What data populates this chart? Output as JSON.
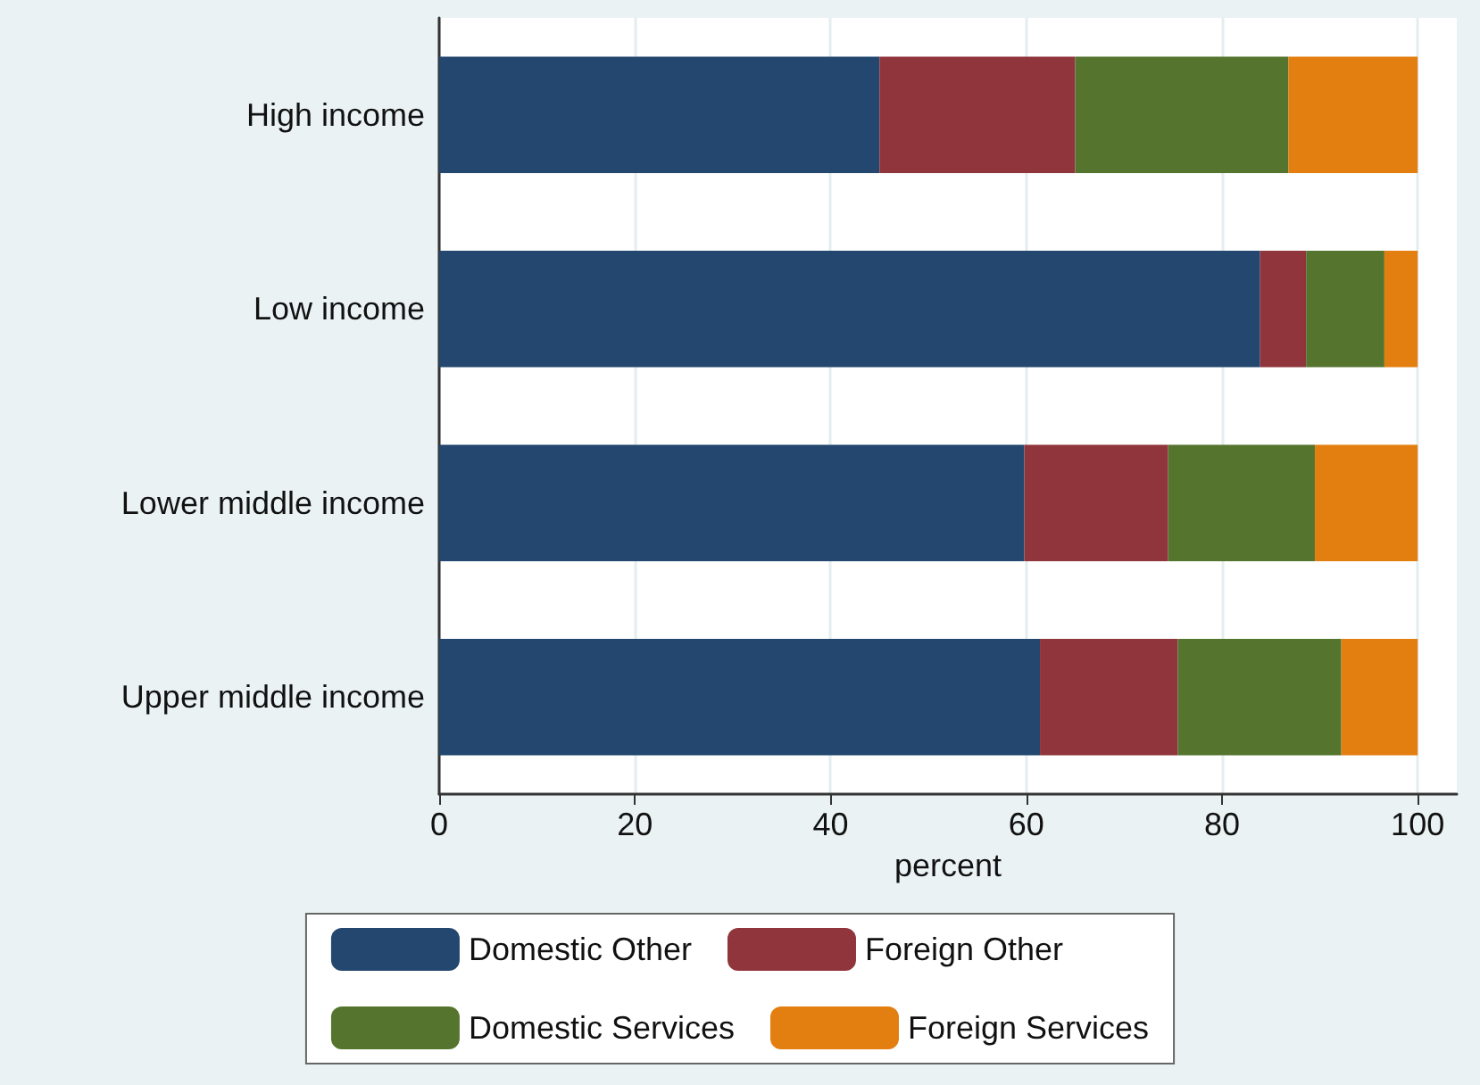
{
  "chart_data": {
    "type": "bar",
    "orientation": "horizontal",
    "stacked": true,
    "xlabel": "percent",
    "categories": [
      "High income",
      "Low income",
      "Lower middle income",
      "Upper middle income"
    ],
    "series": [
      {
        "name": "Domestic Other",
        "color": "#23476e",
        "values": [
          45.0,
          83.9,
          59.8,
          61.4
        ]
      },
      {
        "name": "Foreign Other",
        "color": "#8f353b",
        "values": [
          20.0,
          4.7,
          14.7,
          14.1
        ]
      },
      {
        "name": "Domestic Services",
        "color": "#55752f",
        "values": [
          21.8,
          8.0,
          15.0,
          16.7
        ]
      },
      {
        "name": "Foreign Services",
        "color": "#e37e10",
        "values": [
          13.2,
          3.4,
          10.5,
          7.8
        ]
      }
    ],
    "xlim": [
      0,
      104
    ],
    "xticks": [
      0,
      20,
      40,
      60,
      80,
      100
    ],
    "grid": "x",
    "legend": "bottom"
  }
}
